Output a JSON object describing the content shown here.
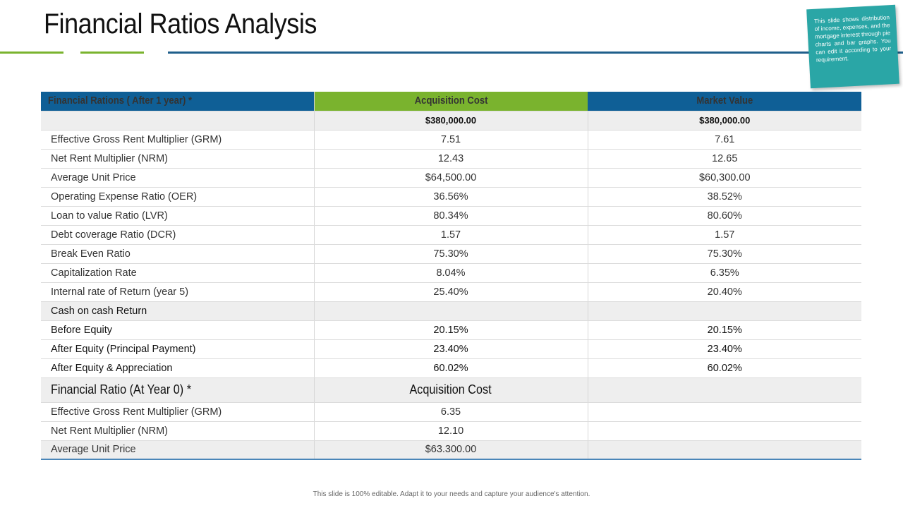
{
  "slide": {
    "title": "Financial Ratios Analysis",
    "note": "This slide shows distribution of income, expenses, and the mortgage interest through pie charts and bar graphs. You can edit it according to your requirement.",
    "footer": "This slide is 100% editable. Adapt it to your needs and capture your audience's attention."
  },
  "colors": {
    "blue": "#0f5f96",
    "green": "#7ab32e",
    "teal": "#2aa6a6",
    "rule_blue": "#1f5f8b"
  },
  "table": {
    "headers": [
      "Financial Rations ( After 1 year) *",
      "Acquisition Cost",
      "Market Value"
    ],
    "cost_row": [
      "",
      "$380,000.00",
      "$380,000.00"
    ],
    "rows": [
      [
        "Effective Gross Rent Multiplier  (GRM)",
        "7.51",
        "7.61"
      ],
      [
        "Net Rent Multiplier  (NRM)",
        "12.43",
        "12.65"
      ],
      [
        "Average Unit Price",
        "$64,500.00",
        "$60,300.00"
      ],
      [
        "Operating Expense Ratio (OER)",
        "36.56%",
        "38.52%"
      ],
      [
        "Loan to value Ratio (LVR)",
        "80.34%",
        "80.60%"
      ],
      [
        "Debt coverage Ratio (DCR)",
        "1.57",
        "1.57"
      ],
      [
        "Break Even Ratio",
        "75.30%",
        "75.30%"
      ],
      [
        "Capitalization Rate",
        "8.04%",
        "6.35%"
      ],
      [
        "Internal rate of Return (year 5)",
        "25.40%",
        "20.40%"
      ]
    ],
    "cash_section": "Cash on cash Return",
    "cash_rows": [
      [
        "Before Equity",
        "20.15%",
        "20.15%"
      ],
      [
        "After Equity (Principal Payment)",
        "23.40%",
        "23.40%"
      ],
      [
        "After Equity & Appreciation",
        "60.02%",
        "60.02%"
      ]
    ],
    "sub_header": [
      "Financial Ratio (At Year 0) *",
      "Acquisition Cost",
      ""
    ],
    "year0_rows": [
      [
        "Effective Gross Rent Multiplier  (GRM)",
        "6.35",
        ""
      ],
      [
        "Net Rent Multiplier  (NRM)",
        "12.10",
        ""
      ],
      [
        "Average Unit Price",
        "$63.300.00",
        ""
      ]
    ]
  }
}
